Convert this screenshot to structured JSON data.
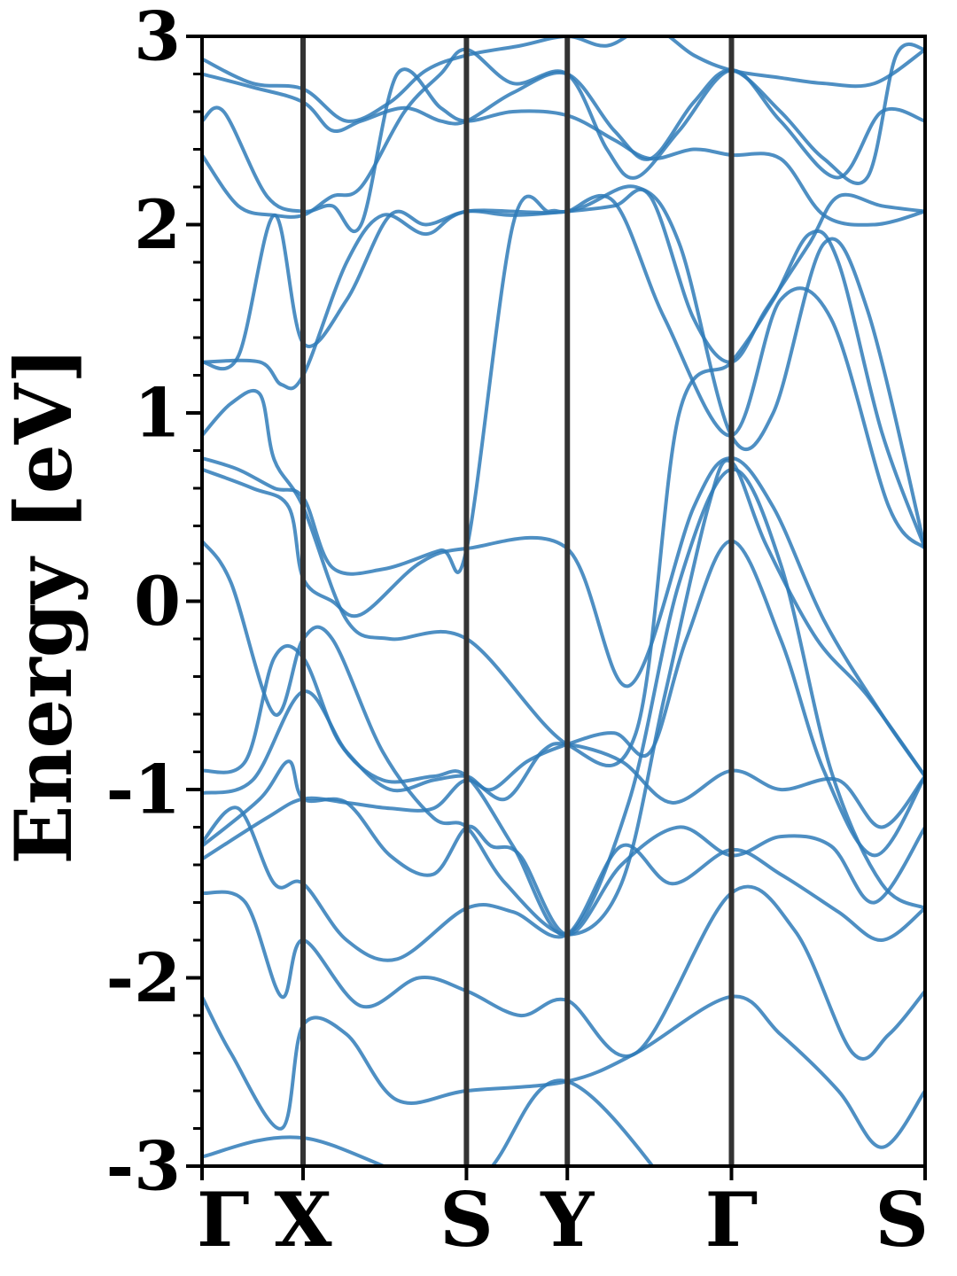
{
  "chart_data": {
    "type": "line",
    "title": "",
    "xlabel": "",
    "ylabel": "Energy [eV]",
    "ylim": [
      -3,
      3
    ],
    "yticks": [
      -3,
      -2,
      -1,
      0,
      1,
      2,
      3
    ],
    "yticks_minor_step": 0.2,
    "kpath": [
      "Γ",
      "X",
      "S",
      "Y",
      "Γ",
      "S"
    ],
    "kpath_positions": [
      0,
      0.1397,
      0.3657,
      0.5052,
      0.7322,
      1.0
    ],
    "line_color": "#2f7bb9",
    "separator_color": "#333333",
    "grid": false,
    "bands": [
      {
        "x": [
          0,
          0.14,
          0.366,
          0.505,
          0.732,
          0.85,
          1.0
        ],
        "y": [
          -2.95,
          -2.85,
          -3.1,
          -2.55,
          -3.5,
          -3.6,
          -3.4
        ]
      },
      {
        "x": [
          0,
          0.04,
          0.11,
          0.14,
          0.2,
          0.27,
          0.366,
          0.505,
          0.6,
          0.732,
          0.8,
          0.88,
          0.94,
          1.0
        ],
        "y": [
          -2.1,
          -2.4,
          -2.8,
          -2.25,
          -2.3,
          -2.65,
          -2.6,
          -2.55,
          -2.4,
          -2.1,
          -2.3,
          -2.6,
          -2.9,
          -2.6
        ]
      },
      {
        "x": [
          0,
          0.06,
          0.11,
          0.14,
          0.22,
          0.3,
          0.366,
          0.44,
          0.505,
          0.6,
          0.732,
          0.82,
          0.9,
          0.95,
          1.0
        ],
        "y": [
          -1.55,
          -1.6,
          -2.1,
          -1.8,
          -2.15,
          -2.0,
          -2.07,
          -2.2,
          -2.12,
          -2.4,
          -1.55,
          -1.75,
          -2.4,
          -2.3,
          -2.07
        ]
      },
      {
        "x": [
          0,
          0.05,
          0.1,
          0.14,
          0.2,
          0.27,
          0.366,
          0.43,
          0.505,
          0.58,
          0.65,
          0.732,
          0.8,
          0.88,
          0.94,
          1.0
        ],
        "y": [
          -1.28,
          -1.1,
          -1.5,
          -1.5,
          -1.8,
          -1.9,
          -1.63,
          -1.65,
          -1.77,
          -1.3,
          -1.5,
          -1.32,
          -1.45,
          -1.65,
          -1.8,
          -1.63
        ]
      },
      {
        "x": [
          0,
          0.08,
          0.12,
          0.14,
          0.2,
          0.26,
          0.32,
          0.366,
          0.4,
          0.44,
          0.505,
          0.58,
          0.66,
          0.732,
          0.8,
          0.87,
          0.93,
          1.0
        ],
        "y": [
          -1.3,
          -1.05,
          -0.85,
          -1.05,
          -1.07,
          -1.35,
          -1.45,
          -1.2,
          -1.3,
          -1.35,
          -1.77,
          -1.4,
          -1.2,
          -1.35,
          -1.25,
          -1.3,
          -1.6,
          -1.2
        ]
      },
      {
        "x": [
          0,
          0.09,
          0.14,
          0.2,
          0.26,
          0.32,
          0.366,
          0.42,
          0.47,
          0.505,
          0.58,
          0.65,
          0.732,
          0.8,
          0.88,
          0.94,
          1.0
        ],
        "y": [
          -1.37,
          -1.15,
          -1.05,
          -1.07,
          -1.1,
          -1.1,
          -0.95,
          -1.05,
          -0.8,
          -0.76,
          -0.85,
          -1.07,
          -0.9,
          -1.0,
          -0.95,
          -1.2,
          -0.93
        ]
      },
      {
        "x": [
          0,
          0.07,
          0.14,
          0.2,
          0.26,
          0.32,
          0.366,
          0.4,
          0.45,
          0.505,
          0.57,
          0.62,
          0.67,
          0.732,
          0.8,
          0.86,
          0.93,
          1.0
        ],
        "y": [
          -1.02,
          -0.95,
          -0.48,
          -0.8,
          -1.0,
          -0.95,
          -0.93,
          -1.0,
          -0.85,
          -0.76,
          -0.7,
          -0.8,
          -0.2,
          0.32,
          -0.2,
          -0.9,
          -1.35,
          -0.93
        ]
      },
      {
        "x": [
          0,
          0.06,
          0.1,
          0.14,
          0.19,
          0.25,
          0.32,
          0.366,
          0.43,
          0.505,
          0.59,
          0.66,
          0.732,
          0.8,
          0.87,
          0.94,
          1.0
        ],
        "y": [
          -0.9,
          -0.85,
          -0.3,
          -0.3,
          -0.75,
          -0.95,
          -0.93,
          -0.93,
          -1.3,
          -1.77,
          -1.07,
          0.1,
          0.7,
          0.2,
          -0.9,
          -1.5,
          -1.63
        ]
      },
      {
        "x": [
          0,
          0.04,
          0.1,
          0.14,
          0.18,
          0.25,
          0.32,
          0.366,
          0.42,
          0.505,
          0.58,
          0.64,
          0.7,
          0.732,
          0.78,
          0.85,
          0.92,
          1.0
        ],
        "y": [
          0.32,
          0.1,
          -0.6,
          -0.2,
          -0.2,
          -0.8,
          -1.15,
          -1.2,
          -1.5,
          -1.77,
          -1.5,
          -0.5,
          0.5,
          0.74,
          0.3,
          -0.2,
          -0.5,
          -0.93
        ]
      },
      {
        "x": [
          0,
          0.07,
          0.12,
          0.14,
          0.18,
          0.22,
          0.3,
          0.366,
          0.505,
          0.59,
          0.68,
          0.732,
          0.79,
          0.86,
          0.94,
          1.0
        ],
        "y": [
          0.7,
          0.6,
          0.5,
          0.12,
          0.0,
          -0.07,
          0.2,
          0.28,
          0.28,
          -0.45,
          0.5,
          0.76,
          0.5,
          -0.1,
          -0.6,
          -0.93
        ]
      },
      {
        "x": [
          0,
          0.05,
          0.1,
          0.14,
          0.18,
          0.25,
          0.33,
          0.366,
          0.43,
          0.48,
          0.505,
          0.57,
          0.64,
          0.732,
          0.8,
          0.87,
          0.95,
          1.0
        ],
        "y": [
          0.76,
          0.7,
          0.6,
          0.55,
          0.18,
          0.17,
          0.27,
          0.28,
          2.0,
          2.07,
          2.07,
          2.12,
          1.5,
          0.88,
          1.6,
          1.5,
          0.5,
          0.28
        ]
      },
      {
        "x": [
          0,
          0.04,
          0.08,
          0.1,
          0.14,
          0.2,
          0.26,
          0.366,
          0.505,
          0.6,
          0.66,
          0.732,
          0.79,
          0.84,
          0.88,
          0.94,
          1.0
        ],
        "y": [
          0.88,
          1.05,
          1.1,
          0.75,
          0.5,
          -0.1,
          -0.2,
          -0.2,
          -0.76,
          -0.7,
          1.0,
          1.27,
          1.6,
          1.95,
          1.8,
          0.9,
          0.28
        ]
      },
      {
        "x": [
          0,
          0.08,
          0.11,
          0.14,
          0.2,
          0.25,
          0.31,
          0.366,
          0.505,
          0.6,
          0.66,
          0.732,
          0.79,
          0.86,
          0.92,
          1.0
        ],
        "y": [
          1.27,
          1.27,
          1.15,
          1.2,
          1.8,
          2.05,
          1.95,
          2.07,
          2.07,
          2.2,
          1.9,
          0.88,
          1.0,
          1.9,
          1.55,
          0.28
        ]
      },
      {
        "x": [
          0,
          0.05,
          0.1,
          0.14,
          0.2,
          0.26,
          0.31,
          0.366,
          0.43,
          0.505,
          0.57,
          0.62,
          0.68,
          0.732,
          0.78,
          0.84,
          0.88,
          0.94,
          1.0
        ],
        "y": [
          1.27,
          1.3,
          2.05,
          1.37,
          1.6,
          2.05,
          2.0,
          2.07,
          2.05,
          2.07,
          2.1,
          2.15,
          1.5,
          1.27,
          1.55,
          1.9,
          2.15,
          2.1,
          2.07
        ]
      },
      {
        "x": [
          0,
          0.05,
          0.1,
          0.14,
          0.18,
          0.22,
          0.28,
          0.33,
          0.366,
          0.43,
          0.505,
          0.56,
          0.6,
          0.66,
          0.732,
          0.8,
          0.88,
          0.94,
          1.0
        ],
        "y": [
          2.37,
          2.1,
          2.05,
          2.05,
          2.15,
          2.2,
          2.6,
          2.8,
          2.93,
          2.75,
          2.8,
          2.4,
          2.25,
          2.5,
          2.82,
          2.55,
          2.25,
          2.6,
          2.55
        ]
      },
      {
        "x": [
          0,
          0.03,
          0.09,
          0.14,
          0.18,
          0.22,
          0.27,
          0.33,
          0.366,
          0.43,
          0.505,
          0.57,
          0.62,
          0.68,
          0.732,
          0.8,
          0.86,
          0.93,
          1.0
        ],
        "y": [
          2.55,
          2.6,
          2.15,
          2.07,
          2.1,
          2.0,
          2.8,
          2.62,
          2.55,
          2.6,
          2.58,
          2.45,
          2.35,
          2.4,
          2.37,
          2.35,
          2.05,
          2.0,
          2.07
        ]
      },
      {
        "x": [
          0,
          0.07,
          0.14,
          0.18,
          0.22,
          0.28,
          0.33,
          0.366,
          0.43,
          0.505,
          0.57,
          0.62,
          0.68,
          0.732,
          0.8,
          0.86,
          0.92,
          0.96,
          1.0
        ],
        "y": [
          2.8,
          2.73,
          2.65,
          2.5,
          2.55,
          2.62,
          2.55,
          2.55,
          2.7,
          2.8,
          2.5,
          2.35,
          2.65,
          2.82,
          2.6,
          2.35,
          2.25,
          2.9,
          2.93
        ]
      },
      {
        "x": [
          0,
          0.07,
          0.14,
          0.2,
          0.26,
          0.31,
          0.366,
          0.44,
          0.505,
          0.56,
          0.62,
          0.68,
          0.732,
          0.8,
          0.86,
          0.93,
          1.0
        ],
        "y": [
          2.88,
          2.75,
          2.72,
          2.55,
          2.65,
          2.82,
          2.9,
          2.95,
          3.0,
          2.95,
          3.05,
          2.9,
          2.82,
          2.78,
          2.75,
          2.75,
          2.93
        ]
      }
    ]
  }
}
